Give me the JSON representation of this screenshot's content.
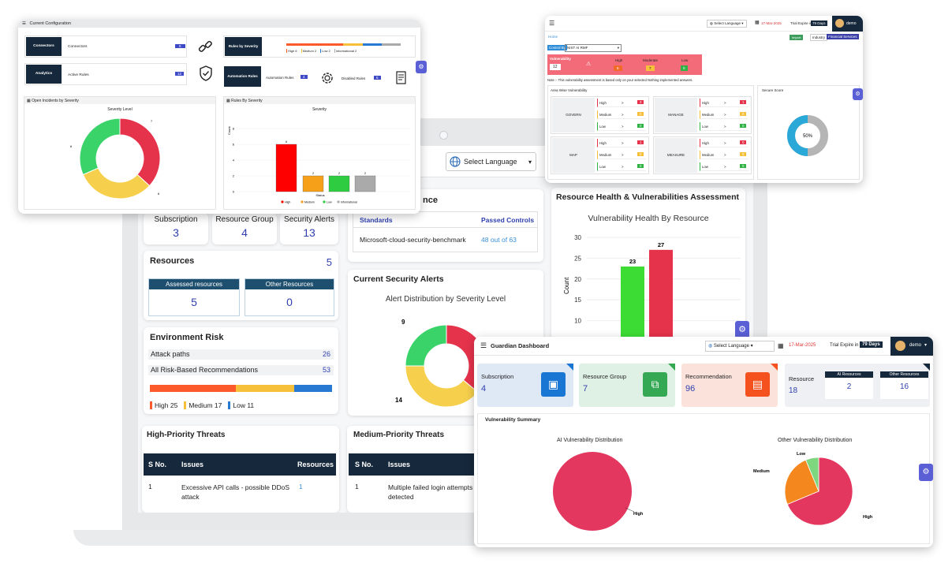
{
  "colors": {
    "navy": "#16283b",
    "critical": "#e6334c",
    "high": "#fc5a2a",
    "medium": "#f6c03a",
    "low": "#3ad33a",
    "informational": "#aaaaaa",
    "blue": "#2f3fae"
  },
  "laptop": {
    "language": "Select Language",
    "stats": [
      {
        "label": "Subscription",
        "value": "3"
      },
      {
        "label": "Resource Group",
        "value": "4"
      },
      {
        "label": "Security Alerts",
        "value": "13"
      }
    ],
    "resources": {
      "title": "Resources",
      "count": "5",
      "assessed_label": "Assessed resources",
      "assessed_value": "5",
      "other_label": "Other Resources",
      "other_value": "0"
    },
    "env_risk": {
      "title": "Environment Risk",
      "rows": [
        {
          "label": "Attack paths",
          "value": "26"
        },
        {
          "label": "All Risk-Based Recommendations",
          "value": "53"
        }
      ],
      "legend": [
        "High 25",
        "Medium 17",
        "Low 11"
      ]
    },
    "compliance": {
      "title_fragment": "nce",
      "col1": "Standards",
      "col2": "Passed Controls",
      "standard": "Microsoft-cloud-security-benchmark",
      "passed": "48 out of 63"
    },
    "alerts": {
      "title": "Current Security Alerts",
      "chart_title": "Alert Distribution by Severity Level",
      "labels": [
        "9",
        "14"
      ]
    },
    "health": {
      "title": "Resource Health & Vulnerabilities Assessment",
      "chart_title": "Vulnerability Health By Resource",
      "ylabel": "Count",
      "ticks": [
        "30",
        "25",
        "20",
        "15",
        "10"
      ],
      "bar_labels": [
        "23",
        "27"
      ]
    },
    "high_threats": {
      "title": "High-Priority Threats",
      "cols": [
        "S No.",
        "Issues",
        "Resources"
      ],
      "row": {
        "sno": "1",
        "issue": "Excessive API calls - possible DDoS attack",
        "res": "1"
      }
    },
    "medium_threats": {
      "title": "Medium-Priority Threats",
      "cols": [
        "S No.",
        "Issues"
      ],
      "row": {
        "sno": "1",
        "issue": "Multiple failed login attempts detected"
      }
    }
  },
  "config": {
    "title": "Current Configuration",
    "items": [
      {
        "btn": "Connectors",
        "label": "Connectors",
        "value": "5"
      },
      {
        "btn": "Analytics",
        "label": "Active Rules",
        "value": "12"
      },
      {
        "btn": "Rules by Severity",
        "legend": [
          "High 6",
          "Medium 2",
          "Low 2",
          "Informational 2"
        ]
      },
      {
        "btn": "Automation Rules",
        "label": "Automation Rules",
        "value": "4"
      },
      {
        "label": "Disabled Rules",
        "value": "6"
      }
    ],
    "incidents": {
      "title": "Open Incidents by Severity",
      "chart_title": "Severity Level",
      "labels": [
        "7",
        "6",
        "6"
      ]
    },
    "rules": {
      "title": "Rules By Severity",
      "chart_title": "Severity",
      "ylabel": "Count",
      "xlabel": "Status",
      "ticks": [
        "8",
        "6",
        "4",
        "2",
        "0"
      ],
      "bar_labels": [
        "6",
        "2",
        "2",
        "2"
      ],
      "legend": [
        "High",
        "Medium",
        "Low",
        "Informational"
      ]
    }
  },
  "ai": {
    "language": "Select Language",
    "date": "17-Mar-2025",
    "trial": "Trial Expire in",
    "days": "79 Days",
    "user": "demo",
    "home": "Home",
    "import": "Import",
    "industry": "Industry",
    "industry_value": "Financial Services",
    "control": "Control By",
    "control_value": "NIST AI RMF",
    "vuln": {
      "label": "Vulnerability",
      "value": "12",
      "cols": [
        {
          "label": "High",
          "value": "5"
        },
        {
          "label": "Moderate",
          "value": "7"
        },
        {
          "label": "Low",
          "value": "0"
        }
      ]
    },
    "note": "Note :- This vulnerability assessment is based only on your selected Nothing implemented answers.",
    "area_title": "Area Wise Vulnerability",
    "secure_title": "Secure Score",
    "secure_value": "50%",
    "areas": [
      {
        "name": "GOVERN",
        "values": [
          "3",
          "0",
          "0"
        ]
      },
      {
        "name": "MANAGE",
        "values": [
          "1",
          "0",
          "0"
        ]
      },
      {
        "name": "MAP",
        "values": [
          "1",
          "0",
          "0"
        ]
      },
      {
        "name": "MEASURE",
        "values": [
          "0",
          "0",
          "0"
        ]
      }
    ],
    "row_labels": [
      "High",
      "Medium",
      "Low"
    ]
  },
  "guardian": {
    "title": "Guardian Dashboard",
    "language": "Select Language",
    "date": "17-Mar-2025",
    "trial": "Trial Expire in",
    "days": "79 Days",
    "user": "demo",
    "cards": [
      {
        "label": "Subscription",
        "value": "4"
      },
      {
        "label": "Resource Group",
        "value": "7"
      },
      {
        "label": "Recommendation",
        "value": "96"
      }
    ],
    "resource": {
      "label": "Resource",
      "value": "18",
      "ai_label": "AI Resources",
      "ai_value": "2",
      "other_label": "Other Resources",
      "other_value": "16"
    },
    "summary": "Vulnerability Summary",
    "ai_chart": {
      "title": "AI Vulnerability Distribution",
      "labels": [
        "High"
      ]
    },
    "other_chart": {
      "title": "Other Vulnerability Distribution",
      "labels": [
        "Low",
        "Medium",
        "High"
      ]
    }
  },
  "chart_data": [
    {
      "type": "bar",
      "title": "Vulnerability Health By Resource",
      "ylabel": "Count",
      "categories": [
        "",
        ""
      ],
      "values": [
        23,
        27
      ],
      "ylim": [
        5,
        30
      ]
    },
    {
      "type": "pie",
      "title": "Alert Distribution by Severity Level",
      "labels": [
        "",
        "",
        ""
      ],
      "values": [
        9,
        14,
        13
      ]
    },
    {
      "type": "pie",
      "title": "Severity Level",
      "labels": [
        "",
        "",
        ""
      ],
      "values": [
        7,
        6,
        6
      ]
    },
    {
      "type": "bar",
      "title": "Severity",
      "xlabel": "Status",
      "ylabel": "Count",
      "categories": [
        "High",
        "Medium",
        "Low",
        "Informational"
      ],
      "values": [
        6,
        2,
        2,
        2
      ],
      "ylim": [
        0,
        8
      ]
    },
    {
      "type": "pie",
      "title": "AI Vulnerability Distribution",
      "labels": [
        "High"
      ],
      "values": [
        2
      ]
    },
    {
      "type": "pie",
      "title": "Other Vulnerability Distribution",
      "labels": [
        "Low",
        "Medium",
        "High"
      ],
      "values": [
        1,
        4,
        11
      ]
    }
  ]
}
